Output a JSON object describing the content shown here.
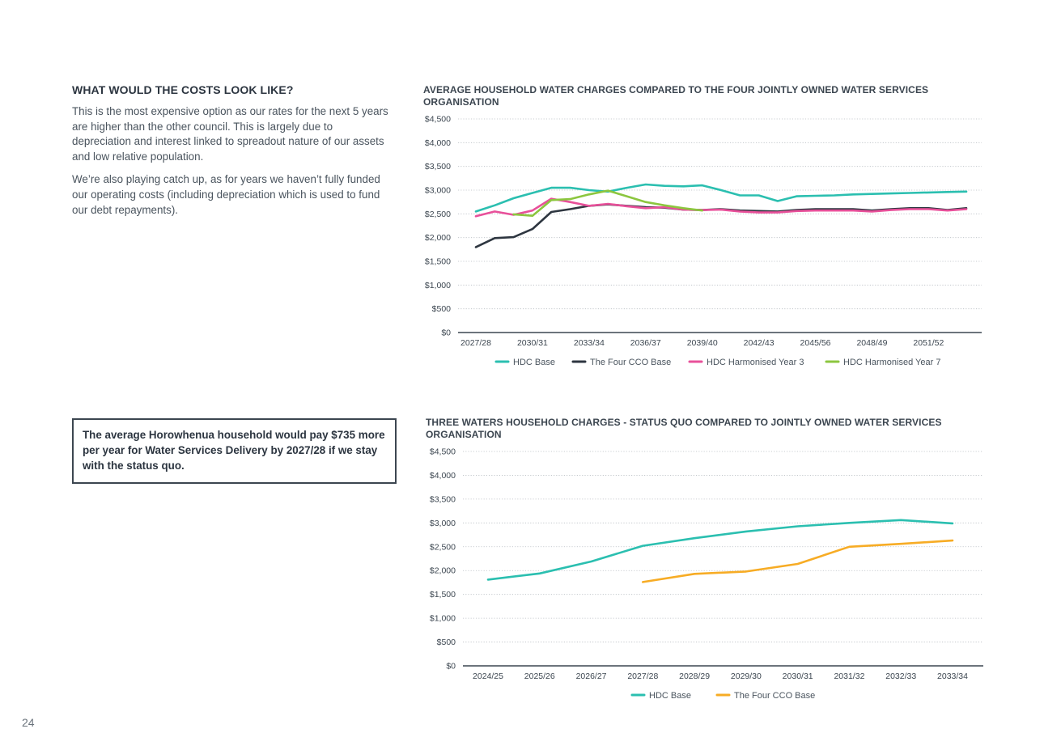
{
  "left": {
    "heading": "WHAT WOULD THE COSTS LOOK LIKE?",
    "paragraphs": [
      "This is the most expensive option as our rates for the next 5 years are higher than the other council. This is largely due to depreciation and interest linked to spreadout nature of our assets and low relative population.",
      "We’re also playing catch up, as for years we haven’t fully funded our operating costs (including depreciation which is used to fund our debt repayments)."
    ],
    "callout": "The average Horowhenua household would pay $735 more per year for Water Services Delivery by 2027/28 if we stay with the status quo."
  },
  "page_number": "24",
  "chart_data": [
    {
      "type": "line",
      "title": "AVERAGE HOUSEHOLD WATER CHARGES COMPARED TO THE FOUR JOINTLY OWNED WATER SERVICES ORGANISATION",
      "y_ticks": [
        "$0",
        "$500",
        "$1,000",
        "$1,500",
        "$2,000",
        "$2,500",
        "$3,000",
        "$3,500",
        "$4,000",
        "$4,500"
      ],
      "ylim": [
        0,
        4500
      ],
      "n_points": 27,
      "x_tick_labels": [
        "2027/28",
        "2030/31",
        "2033/34",
        "2036/37",
        "2039/40",
        "2042/43",
        "2045/56",
        "2048/49",
        "2051/52"
      ],
      "x_tick_indices": [
        0,
        3,
        6,
        9,
        12,
        15,
        18,
        21,
        24
      ],
      "grid": true,
      "legend_position": "bottom",
      "series": [
        {
          "name": "HDC Base",
          "color": "#2bbfb0",
          "values": [
            2550,
            2680,
            2830,
            2940,
            3050,
            3050,
            3000,
            2970,
            3050,
            3120,
            3090,
            3080,
            3100,
            3000,
            2890,
            2890,
            2770,
            2870,
            2880,
            2890,
            2910,
            2920,
            2930,
            2940,
            2950,
            2960,
            2970
          ]
        },
        {
          "name": "The Four CCO Base",
          "color": "#2e3640",
          "values": [
            1800,
            1990,
            2010,
            2180,
            2540,
            2600,
            2670,
            2700,
            2670,
            2640,
            2630,
            2590,
            2580,
            2600,
            2570,
            2560,
            2550,
            2580,
            2600,
            2600,
            2600,
            2570,
            2600,
            2620,
            2620,
            2580,
            2620
          ]
        },
        {
          "name": "HDC Harmonised Year 3",
          "color": "#e8509a",
          "values": [
            2450,
            2550,
            2480,
            2570,
            2820,
            2750,
            2670,
            2710,
            2660,
            2620,
            2640,
            2590,
            2580,
            2590,
            2550,
            2530,
            2530,
            2560,
            2570,
            2570,
            2570,
            2550,
            2580,
            2600,
            2600,
            2570,
            2600
          ]
        },
        {
          "name": "HDC Harmonised Year 7",
          "color": "#8cc63f",
          "values": [
            null,
            null,
            2490,
            2460,
            2790,
            2810,
            2910,
            2990,
            2870,
            2750,
            2680,
            2620,
            2570
          ]
        }
      ]
    },
    {
      "type": "line",
      "title": "THREE WATERS HOUSEHOLD CHARGES - STATUS QUO COMPARED TO JOINTLY OWNED WATER SERVICES ORGANISATION",
      "y_ticks": [
        "$0",
        "$500",
        "$1,000",
        "$1,500",
        "$2,000",
        "$2,500",
        "$3,000",
        "$3,500",
        "$4,000",
        "$4,500"
      ],
      "ylim": [
        0,
        4500
      ],
      "categories": [
        "2024/25",
        "2025/26",
        "2026/27",
        "2027/28",
        "2028/29",
        "2029/30",
        "2030/31",
        "2031/32",
        "2032/33",
        "2033/34"
      ],
      "grid": true,
      "legend_position": "bottom",
      "series": [
        {
          "name": "HDC Base",
          "color": "#2bbfb0",
          "values": [
            1810,
            1940,
            2190,
            2520,
            2680,
            2820,
            2930,
            3000,
            3060,
            2990
          ]
        },
        {
          "name": "The Four CCO Base",
          "color": "#f7ac25",
          "values": [
            null,
            null,
            null,
            1760,
            1930,
            1980,
            2140,
            2500,
            2560,
            2630
          ]
        }
      ]
    }
  ]
}
